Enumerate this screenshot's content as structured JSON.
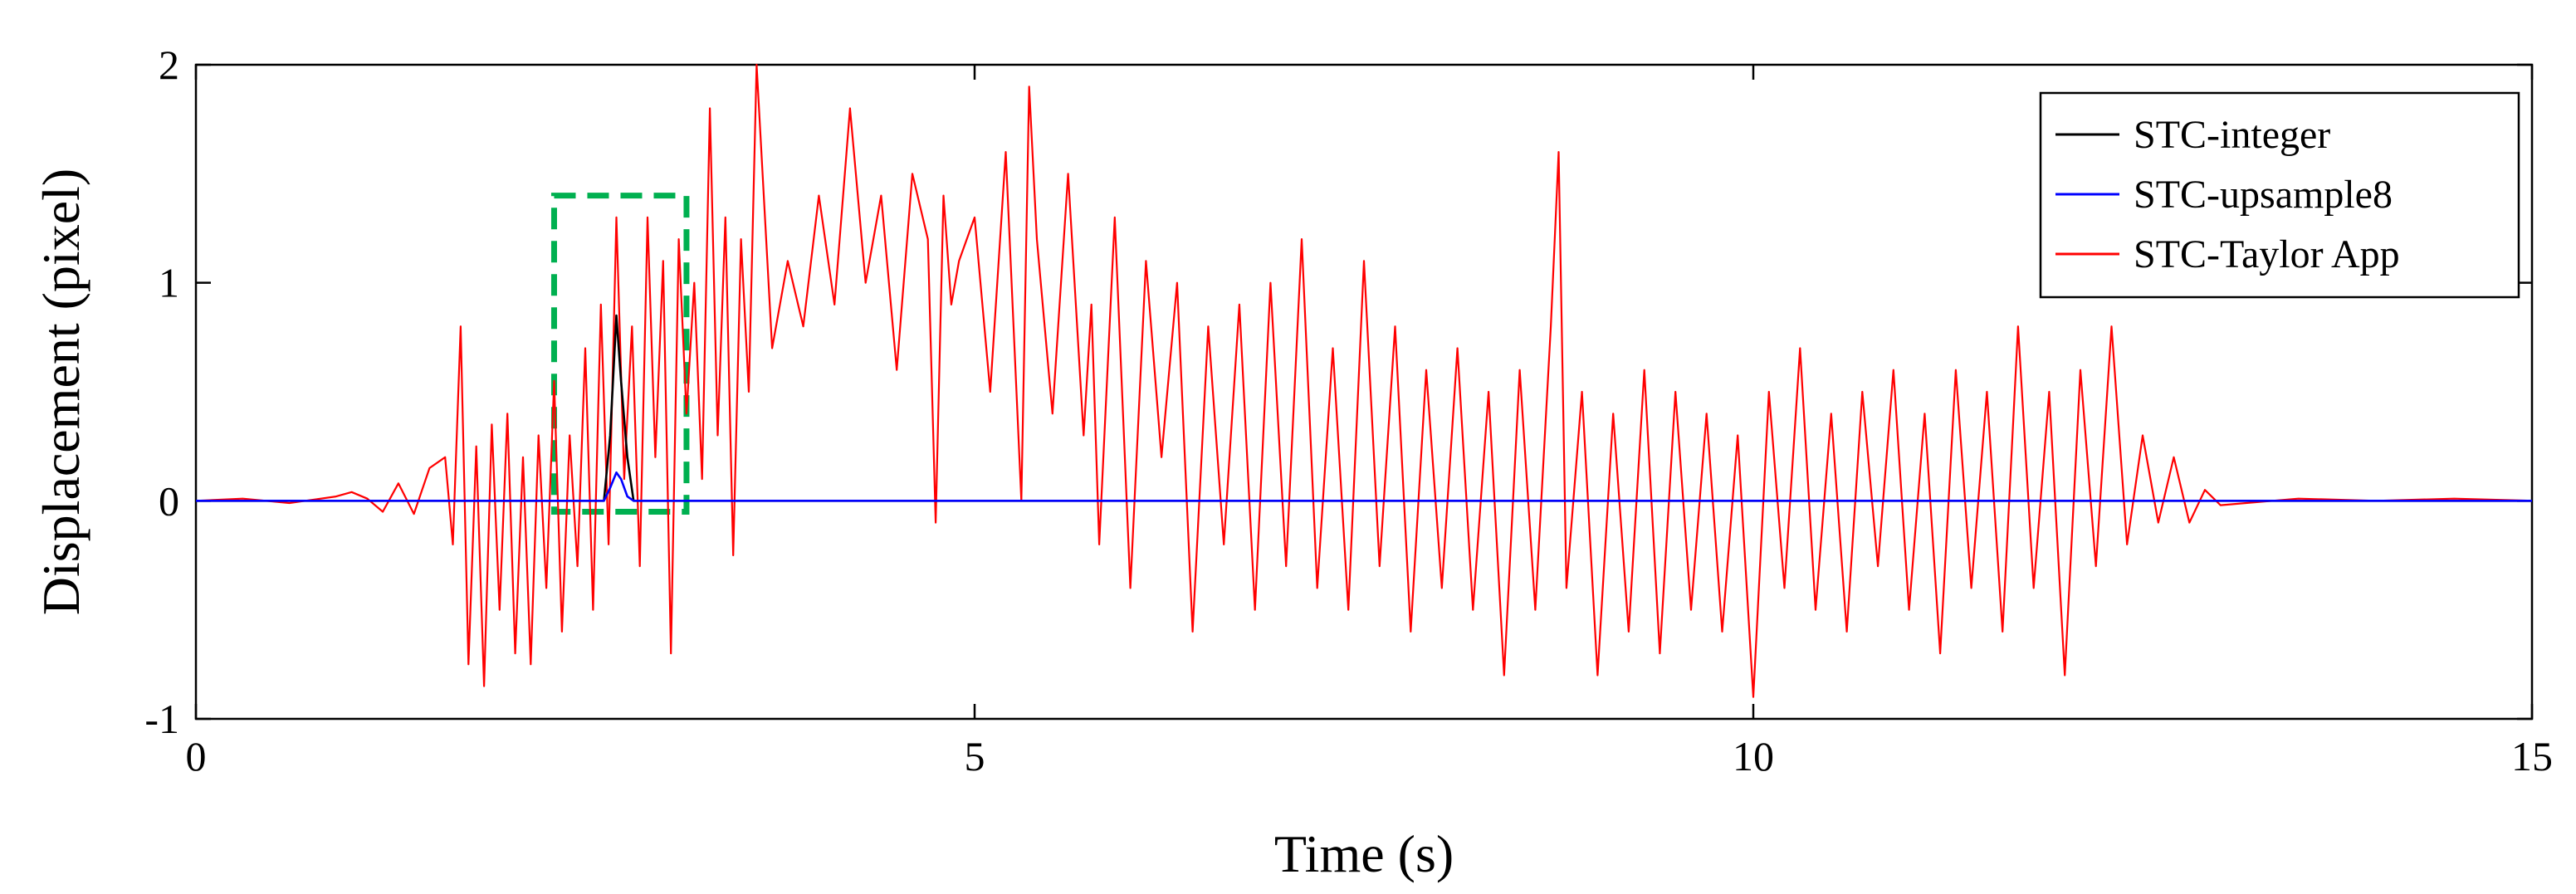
{
  "chart_data": {
    "type": "line",
    "xlabel": "Time (s)",
    "ylabel": "Displacement (pixel)",
    "xlim": [
      0,
      15
    ],
    "ylim": [
      -1,
      2
    ],
    "xticks": [
      0,
      5,
      10,
      15
    ],
    "yticks": [
      -1,
      0,
      1,
      2
    ],
    "grid": false,
    "legend_position": "top-right",
    "series": [
      {
        "name": "STC-integer",
        "color": "#000000",
        "x": [
          0,
          2.62,
          2.66,
          2.7,
          2.73,
          2.77,
          2.81,
          15
        ],
        "y": [
          0,
          0,
          0.3,
          0.85,
          0.55,
          0.2,
          0,
          0
        ]
      },
      {
        "name": "STC-upsample8",
        "color": "#0000ff",
        "x": [
          0,
          2.62,
          2.66,
          2.7,
          2.73,
          2.77,
          2.81,
          15
        ],
        "y": [
          0,
          0,
          0.06,
          0.13,
          0.1,
          0.02,
          0,
          0
        ]
      },
      {
        "name": "STC-Taylor App",
        "color": "#ff0000",
        "x": [
          0,
          0.3,
          0.6,
          0.9,
          1.0,
          1.1,
          1.2,
          1.3,
          1.4,
          1.5,
          1.6,
          1.65,
          1.7,
          1.75,
          1.8,
          1.85,
          1.9,
          1.95,
          2.0,
          2.05,
          2.1,
          2.15,
          2.2,
          2.25,
          2.3,
          2.35,
          2.4,
          2.45,
          2.5,
          2.55,
          2.6,
          2.65,
          2.7,
          2.75,
          2.8,
          2.85,
          2.9,
          2.95,
          3.0,
          3.05,
          3.1,
          3.15,
          3.2,
          3.25,
          3.3,
          3.35,
          3.4,
          3.45,
          3.5,
          3.55,
          3.6,
          3.7,
          3.8,
          3.9,
          4.0,
          4.1,
          4.2,
          4.3,
          4.4,
          4.5,
          4.6,
          4.7,
          4.75,
          4.8,
          4.85,
          4.9,
          5.0,
          5.1,
          5.2,
          5.3,
          5.35,
          5.4,
          5.5,
          5.6,
          5.7,
          5.75,
          5.8,
          5.9,
          6.0,
          6.1,
          6.2,
          6.3,
          6.4,
          6.5,
          6.6,
          6.7,
          6.8,
          6.9,
          7.0,
          7.1,
          7.2,
          7.3,
          7.4,
          7.5,
          7.6,
          7.7,
          7.8,
          7.9,
          8.0,
          8.1,
          8.2,
          8.3,
          8.4,
          8.5,
          8.6,
          8.7,
          8.75,
          8.8,
          8.9,
          9.0,
          9.1,
          9.2,
          9.3,
          9.4,
          9.5,
          9.6,
          9.7,
          9.8,
          9.9,
          10.0,
          10.1,
          10.2,
          10.3,
          10.4,
          10.5,
          10.6,
          10.7,
          10.8,
          10.9,
          11.0,
          11.1,
          11.2,
          11.3,
          11.4,
          11.5,
          11.6,
          11.7,
          11.8,
          11.9,
          12.0,
          12.1,
          12.2,
          12.3,
          12.4,
          12.5,
          12.6,
          12.7,
          12.8,
          12.9,
          13.0,
          13.5,
          14.0,
          14.5,
          15.0
        ],
        "y": [
          0,
          0.01,
          -0.01,
          0.02,
          0.04,
          0.01,
          -0.05,
          0.08,
          -0.06,
          0.15,
          0.2,
          -0.2,
          0.8,
          -0.75,
          0.25,
          -0.85,
          0.35,
          -0.5,
          0.4,
          -0.7,
          0.2,
          -0.75,
          0.3,
          -0.4,
          0.55,
          -0.6,
          0.3,
          -0.3,
          0.7,
          -0.5,
          0.9,
          -0.2,
          1.3,
          0.1,
          0.8,
          -0.3,
          1.3,
          0.2,
          1.1,
          -0.7,
          1.2,
          0.4,
          1.0,
          0.1,
          1.8,
          0.3,
          1.3,
          -0.25,
          1.2,
          0.5,
          2.0,
          0.7,
          1.1,
          0.8,
          1.4,
          0.9,
          1.8,
          1.0,
          1.4,
          0.6,
          1.5,
          1.2,
          -0.1,
          1.4,
          0.9,
          1.1,
          1.3,
          0.5,
          1.6,
          0.0,
          1.9,
          1.2,
          0.4,
          1.5,
          0.3,
          0.9,
          -0.2,
          1.3,
          -0.4,
          1.1,
          0.2,
          1.0,
          -0.6,
          0.8,
          -0.2,
          0.9,
          -0.5,
          1.0,
          -0.3,
          1.2,
          -0.4,
          0.7,
          -0.5,
          1.1,
          -0.3,
          0.8,
          -0.6,
          0.6,
          -0.4,
          0.7,
          -0.5,
          0.5,
          -0.8,
          0.6,
          -0.5,
          0.8,
          1.6,
          -0.4,
          0.5,
          -0.8,
          0.4,
          -0.6,
          0.6,
          -0.7,
          0.5,
          -0.5,
          0.4,
          -0.6,
          0.3,
          -0.9,
          0.5,
          -0.4,
          0.7,
          -0.5,
          0.4,
          -0.6,
          0.5,
          -0.3,
          0.6,
          -0.5,
          0.4,
          -0.7,
          0.6,
          -0.4,
          0.5,
          -0.6,
          0.8,
          -0.4,
          0.5,
          -0.8,
          0.6,
          -0.3,
          0.8,
          -0.2,
          0.3,
          -0.1,
          0.2,
          -0.1,
          0.05,
          -0.02,
          0.01,
          0,
          0.01,
          0
        ]
      }
    ],
    "annotations": [
      {
        "type": "dashed-rectangle",
        "color": "#00b050",
        "x_range": [
          2.3,
          3.15
        ],
        "y_range": [
          -0.05,
          1.4
        ]
      }
    ]
  }
}
